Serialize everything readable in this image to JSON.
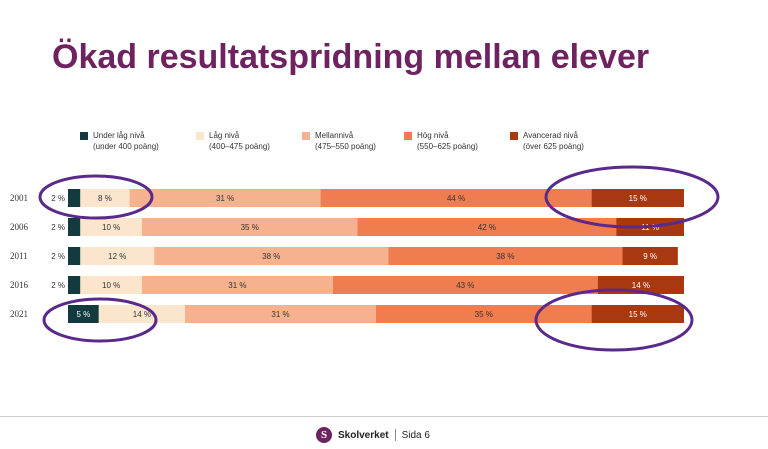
{
  "title": "Ökad resultatspridning mellan elever",
  "legend": [
    {
      "line1": "Under låg nivå",
      "line2": "(under 400 poäng)",
      "color": "#123a3f"
    },
    {
      "line1": "Låg nivå",
      "line2": "(400–475 poäng)",
      "color": "#fbe5cd"
    },
    {
      "line1": "Mellannivå",
      "line2": "(475–550 poäng)",
      "color": "#f6b28e"
    },
    {
      "line1": "Hög nivå",
      "line2": "(550–625 poäng)",
      "color": "#ef7d4f"
    },
    {
      "line1": "Avancerad nivå",
      "line2": "(över 625 poäng)",
      "color": "#a8380f"
    }
  ],
  "chart_data": {
    "type": "bar",
    "orientation": "horizontal",
    "stacked": true,
    "categories": [
      "2001",
      "2006",
      "2011",
      "2016",
      "2021"
    ],
    "series": [
      {
        "name": "Under låg nivå",
        "values": [
          2,
          2,
          2,
          2,
          5
        ],
        "labels": [
          "2 %",
          "2 %",
          "2 %",
          "2 %",
          "5 %"
        ]
      },
      {
        "name": "Låg nivå",
        "values": [
          8,
          10,
          12,
          10,
          14
        ],
        "labels": [
          "8 %",
          "10 %",
          "12 %",
          "10 %",
          "14 %"
        ]
      },
      {
        "name": "Mellannivå",
        "values": [
          31,
          35,
          38,
          31,
          31
        ],
        "labels": [
          "31 %",
          "35 %",
          "38 %",
          "31 %",
          "31 %"
        ]
      },
      {
        "name": "Hög nivå",
        "values": [
          44,
          42,
          38,
          43,
          35
        ],
        "labels": [
          "44 %",
          "42 %",
          "38 %",
          "43 %",
          "35 %"
        ]
      },
      {
        "name": "Avancerad nivå",
        "values": [
          15,
          11,
          9,
          14,
          15
        ],
        "labels": [
          "15 %",
          "11 %",
          "9 %",
          "14 %",
          "15 %"
        ]
      }
    ],
    "xlim": [
      0,
      100
    ],
    "legend_position": "top",
    "annotations": "circled values: 2001 Under låg nivå and Låg nivå, 2001 Avancerad nivå, 2021 Under låg nivå and Låg nivå, 2021 Avancerad nivå"
  },
  "footer": {
    "logo_letter": "S",
    "brand": "Skolverket",
    "page": "Sida 6"
  }
}
